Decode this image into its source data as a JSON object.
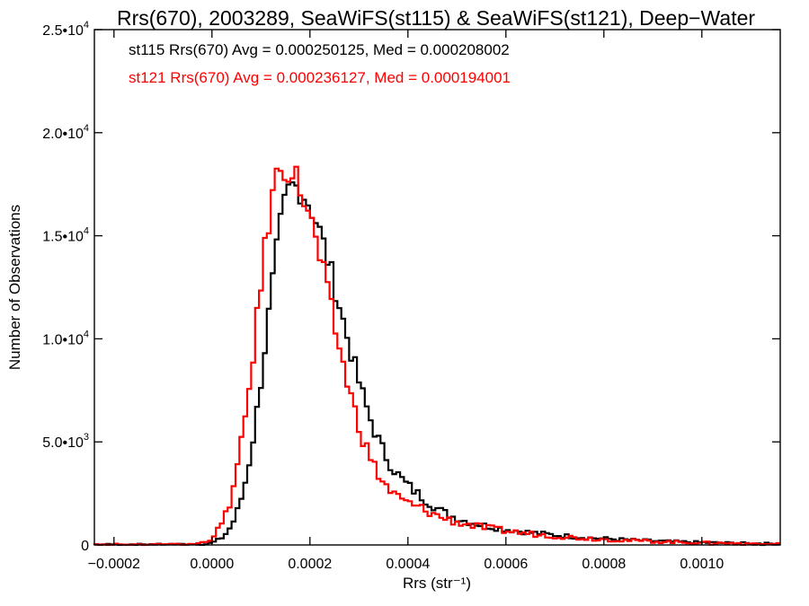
{
  "chart_data": {
    "type": "step",
    "title": "Rrs(670), 2003289, SeaWiFS(st115) & SeaWiFS(st121), Deep−Water",
    "xlabel": "Rrs (str⁻¹)",
    "ylabel": "Number of Observations",
    "xlim": [
      -0.00024,
      0.00116
    ],
    "ylim": [
      0,
      25000
    ],
    "x_ticks": [
      {
        "value": -0.0002,
        "label": "−0.0002"
      },
      {
        "value": 0.0,
        "label": "0.0000"
      },
      {
        "value": 0.0002,
        "label": "0.0002"
      },
      {
        "value": 0.0004,
        "label": "0.0004"
      },
      {
        "value": 0.0006,
        "label": "0.0006"
      },
      {
        "value": 0.0008,
        "label": "0.0008"
      },
      {
        "value": 0.001,
        "label": "0.0010"
      }
    ],
    "y_ticks": [
      {
        "value": 0,
        "mantissa": "0",
        "exp": ""
      },
      {
        "value": 5000,
        "mantissa": "5.0•10",
        "exp": "3"
      },
      {
        "value": 10000,
        "mantissa": "1.0•10",
        "exp": "4"
      },
      {
        "value": 15000,
        "mantissa": "1.5•10",
        "exp": "4"
      },
      {
        "value": 20000,
        "mantissa": "2.0•10",
        "exp": "4"
      },
      {
        "value": 25000,
        "mantissa": "2.5•10",
        "exp": "4"
      }
    ],
    "bin_width": 8e-06,
    "annotations": [
      {
        "text": "st115 Rrs(670) Avg = 0.000250125, Med = 0.000208002",
        "color": "#000000"
      },
      {
        "text": "st121 Rrs(670) Avg = 0.000236127, Med = 0.000194001",
        "color": "#ff0000"
      }
    ],
    "series": [
      {
        "color": "#000000",
        "peak_x": 0.000165,
        "peak_y": 17400,
        "sigma_left": 5.2e-05,
        "sigma_right": 0.000105,
        "tail_x": 0.00045,
        "tail_amp": 1500,
        "tail_decay": 0.00022,
        "jitter": 700
      },
      {
        "color": "#ff0000",
        "peak_x": 0.000145,
        "peak_y": 18400,
        "sigma_left": 5.2e-05,
        "sigma_right": 0.0001,
        "tail_x": 0.00045,
        "tail_amp": 1350,
        "tail_decay": 0.00022,
        "jitter": 800
      }
    ]
  }
}
